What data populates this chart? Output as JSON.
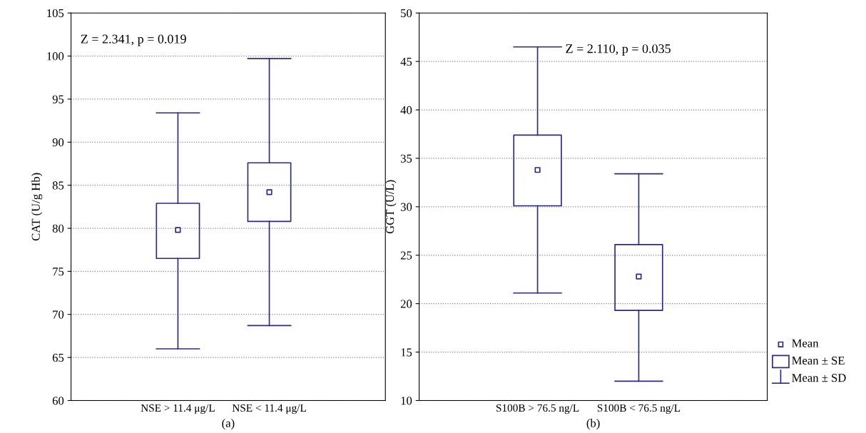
{
  "chart_data": [
    {
      "type": "box",
      "ylabel": "CAT (U/g Hb)",
      "categories": [
        "NSE > 11.4 μg/L",
        "NSE < 11.4 μg/L"
      ],
      "color": "#2b2b80",
      "boxes": [
        {
          "low": 66.0,
          "q1": 76.5,
          "median": 79.8,
          "q3": 82.9,
          "high": 93.4
        },
        {
          "low": 68.7,
          "q1": 80.8,
          "median": 84.2,
          "q3": 87.6,
          "high": 99.7
        }
      ],
      "ylim": [
        60,
        105
      ],
      "yticks": [
        60,
        65,
        70,
        75,
        80,
        85,
        90,
        95,
        100,
        105
      ],
      "grid": "y",
      "annotations": [
        "Z = 2.341, p = 0.019",
        "(a)"
      ]
    },
    {
      "type": "box",
      "ylabel": "GGT (U/L)",
      "categories": [
        "S100B > 76.5 ng/L",
        "S100B < 76.5 ng/L"
      ],
      "color": "#2b2b80",
      "boxes": [
        {
          "low": 21.1,
          "q1": 30.1,
          "median": 33.8,
          "q3": 37.4,
          "high": 46.5
        },
        {
          "low": 12.0,
          "q1": 19.3,
          "median": 22.8,
          "q3": 26.1,
          "high": 33.4
        }
      ],
      "ylim": [
        10,
        50
      ],
      "yticks": [
        10,
        15,
        20,
        25,
        30,
        35,
        40,
        45,
        50
      ],
      "grid": "y",
      "annotations": [
        "Z = 2.110, p = 0.035",
        "(b)",
        "Mean",
        "Mean ± SE",
        "Mean ± SD"
      ]
    }
  ]
}
